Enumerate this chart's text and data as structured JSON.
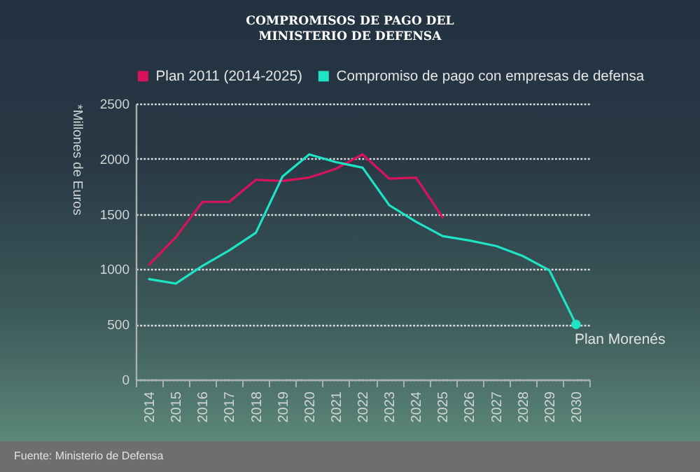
{
  "chart_data": {
    "type": "line",
    "title": "COMPROMISOS DE PAGO DEL MINISTERIO DE DEFENSA",
    "ylabel": "*Millones de Euros",
    "categories": [
      "2014",
      "2015",
      "2016",
      "2017",
      "2018",
      "2019",
      "2020",
      "2021",
      "2022",
      "2023",
      "2024",
      "2025",
      "2026",
      "2027",
      "2028",
      "2029",
      "2030"
    ],
    "series": [
      {
        "name": "Plan 2011 (2014-2025)",
        "color": "#d8125b",
        "values": [
          1040,
          1290,
          1610,
          1610,
          1810,
          1800,
          1830,
          1910,
          2040,
          1820,
          1830,
          1470,
          null,
          null,
          null,
          null,
          null
        ]
      },
      {
        "name": "Compromiso de pago con empresas de defensa",
        "color": "#1ee3c4",
        "values": [
          910,
          870,
          1030,
          1170,
          1330,
          1840,
          2040,
          1970,
          1920,
          1580,
          1430,
          1300,
          1260,
          1210,
          1120,
          990,
          500
        ]
      }
    ],
    "ylim": [
      0,
      2500
    ],
    "yticks": [
      0,
      500,
      1000,
      1500,
      2000,
      2500
    ],
    "grid": "y",
    "legend": "top",
    "line_style": "solid",
    "annotations": [
      {
        "text": "Plan Morenés",
        "x": "2030",
        "y": 500
      },
      "Fuente: Ministerio de Defensa"
    ]
  }
}
